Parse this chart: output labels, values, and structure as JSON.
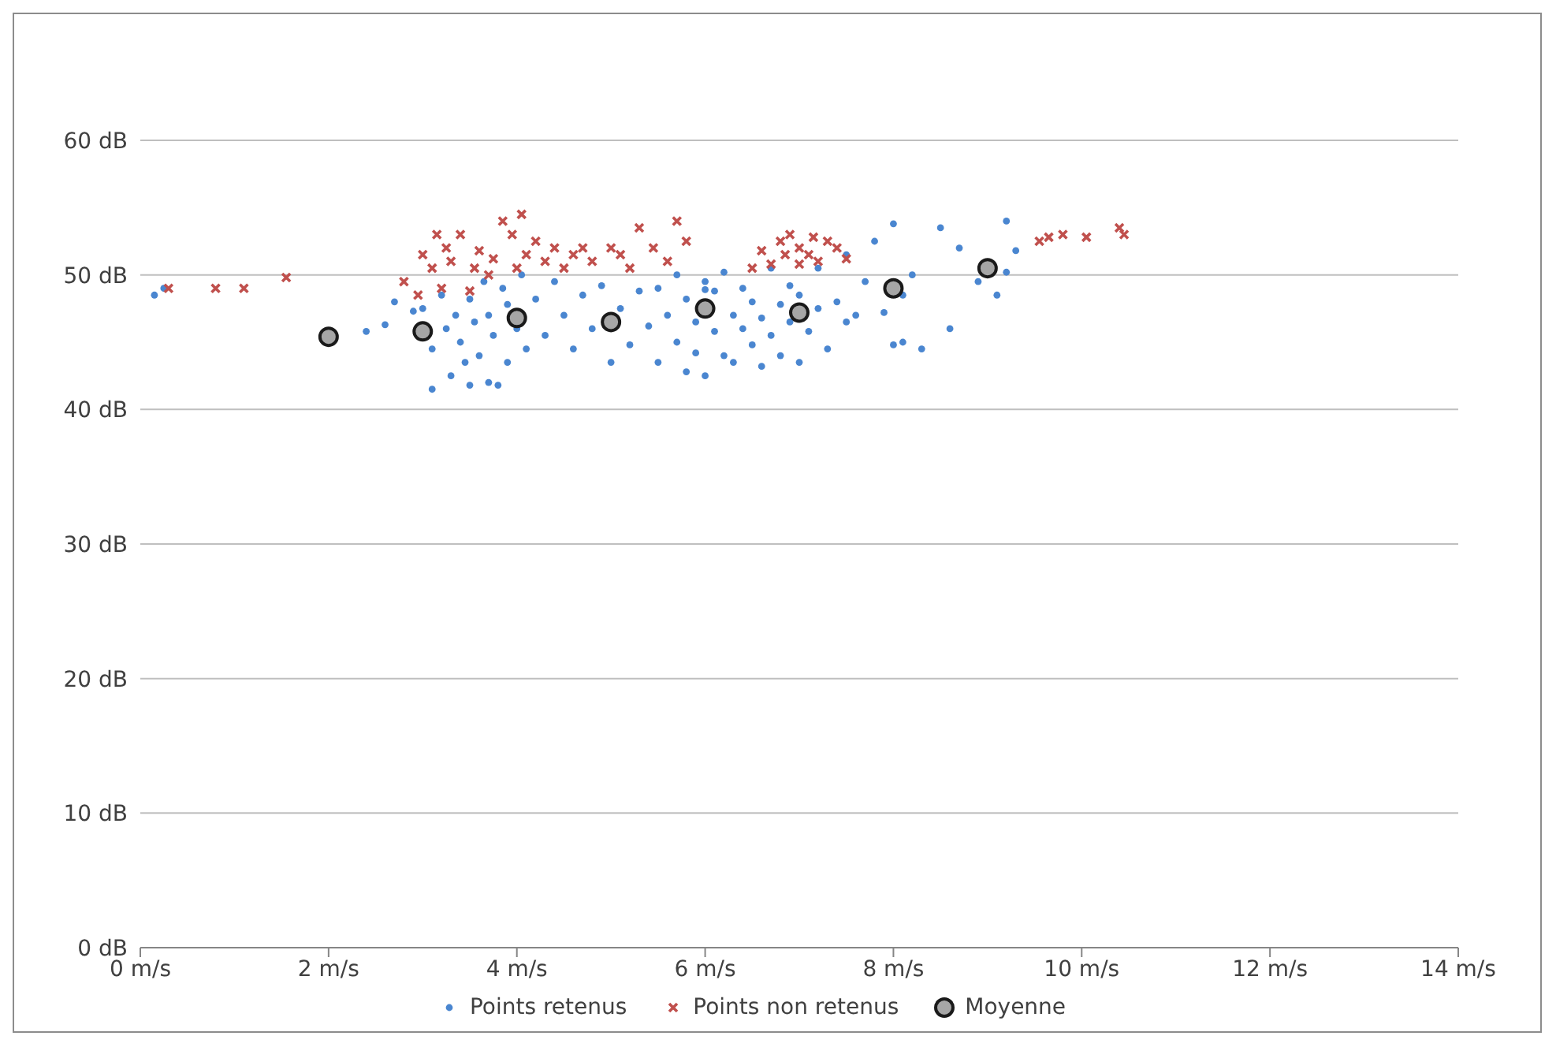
{
  "chart_data": {
    "type": "scatter",
    "xlim": [
      0,
      14
    ],
    "ylim": [
      0,
      60
    ],
    "xticks": [
      {
        "value": 0,
        "label": "0 m/s"
      },
      {
        "value": 2,
        "label": "2 m/s"
      },
      {
        "value": 4,
        "label": "4 m/s"
      },
      {
        "value": 6,
        "label": "6 m/s"
      },
      {
        "value": 8,
        "label": "8 m/s"
      },
      {
        "value": 10,
        "label": "10 m/s"
      },
      {
        "value": 12,
        "label": "12 m/s"
      },
      {
        "value": 14,
        "label": "14 m/s"
      }
    ],
    "yticks": [
      {
        "value": 0,
        "label": "0 dB"
      },
      {
        "value": 10,
        "label": "10 dB"
      },
      {
        "value": 20,
        "label": "20 dB"
      },
      {
        "value": 30,
        "label": "30 dB"
      },
      {
        "value": 40,
        "label": "40 dB"
      },
      {
        "value": 50,
        "label": "50 dB"
      },
      {
        "value": 60,
        "label": "60 dB"
      }
    ],
    "grid": "y",
    "legend": "bottom",
    "series": [
      {
        "name": "Points retenus",
        "color": "#4a86d0",
        "marker": "circle",
        "x": [
          0.15,
          0.25,
          2.4,
          2.6,
          2.7,
          2.9,
          3.0,
          3.1,
          3.1,
          3.2,
          3.25,
          3.3,
          3.35,
          3.4,
          3.45,
          3.5,
          3.5,
          3.55,
          3.6,
          3.65,
          3.7,
          3.7,
          3.75,
          3.8,
          3.85,
          3.9,
          3.9,
          4.0,
          4.05,
          4.1,
          4.2,
          4.3,
          4.4,
          4.5,
          4.6,
          4.7,
          4.8,
          4.9,
          5.0,
          5.1,
          5.2,
          5.3,
          5.4,
          5.5,
          5.5,
          5.6,
          5.7,
          5.7,
          5.8,
          5.8,
          5.9,
          5.9,
          6.0,
          6.0,
          6.0,
          6.1,
          6.1,
          6.2,
          6.2,
          6.3,
          6.3,
          6.4,
          6.4,
          6.5,
          6.5,
          6.6,
          6.6,
          6.7,
          6.7,
          6.8,
          6.8,
          6.9,
          6.9,
          7.0,
          7.0,
          7.1,
          7.2,
          7.2,
          7.3,
          7.4,
          7.5,
          7.5,
          7.6,
          7.7,
          7.8,
          7.9,
          8.0,
          8.0,
          8.1,
          8.1,
          8.2,
          8.3,
          8.5,
          8.6,
          8.7,
          8.9,
          9.1,
          9.2,
          9.2,
          9.3
        ],
        "values": [
          48.5,
          49,
          45.8,
          46.3,
          48,
          47.3,
          47.5,
          41.5,
          44.5,
          48.5,
          46,
          42.5,
          47,
          45,
          43.5,
          41.8,
          48.2,
          46.5,
          44,
          49.5,
          42,
          47,
          45.5,
          41.8,
          49,
          43.5,
          47.8,
          46,
          50,
          44.5,
          48.2,
          45.5,
          49.5,
          47,
          44.5,
          48.5,
          46,
          49.2,
          43.5,
          47.5,
          44.8,
          48.8,
          46.2,
          43.5,
          49,
          47,
          45,
          50,
          42.8,
          48.2,
          46.5,
          44.2,
          49.5,
          48.9,
          42.5,
          45.8,
          48.8,
          44,
          50.2,
          47,
          43.5,
          46,
          49,
          44.8,
          48,
          46.8,
          43.2,
          50.5,
          45.5,
          47.8,
          44,
          49.2,
          46.5,
          48.5,
          43.5,
          45.8,
          47.5,
          50.5,
          44.5,
          48,
          46.5,
          51.5,
          47,
          49.5,
          52.5,
          47.2,
          44.8,
          53.8,
          48.5,
          45,
          50,
          44.5,
          53.5,
          46,
          52,
          49.5,
          48.5,
          54,
          50.2,
          51.8
        ]
      },
      {
        "name": "Points non retenus",
        "color": "#c0504d",
        "marker": "cross",
        "x": [
          0.3,
          0.8,
          1.1,
          1.55,
          2.8,
          2.95,
          3.0,
          3.1,
          3.15,
          3.2,
          3.25,
          3.3,
          3.4,
          3.5,
          3.55,
          3.6,
          3.7,
          3.75,
          3.85,
          3.95,
          4.0,
          4.05,
          4.1,
          4.2,
          4.3,
          4.4,
          4.5,
          4.6,
          4.7,
          4.8,
          5.0,
          5.1,
          5.2,
          5.3,
          5.45,
          5.6,
          5.7,
          5.8,
          6.5,
          6.6,
          6.7,
          6.8,
          6.85,
          6.9,
          7.0,
          7.0,
          7.1,
          7.15,
          7.2,
          7.3,
          7.4,
          7.5,
          9.55,
          9.65,
          9.8,
          10.05,
          10.4,
          10.45
        ],
        "values": [
          49,
          49,
          49,
          49.8,
          49.5,
          48.5,
          51.5,
          50.5,
          53,
          49,
          52,
          51,
          53,
          48.8,
          50.5,
          51.8,
          50,
          51.2,
          54,
          53,
          50.5,
          54.5,
          51.5,
          52.5,
          51,
          52,
          50.5,
          51.5,
          52,
          51,
          52,
          51.5,
          50.5,
          53.5,
          52,
          51,
          54,
          52.5,
          50.5,
          51.8,
          50.8,
          52.5,
          51.5,
          53,
          50.8,
          52,
          51.5,
          52.8,
          51,
          52.5,
          52,
          51.2,
          52.5,
          52.8,
          53,
          52.8,
          53.5,
          53
        ]
      },
      {
        "name": "Moyenne",
        "color": "#a6a6a6",
        "marker": "circle",
        "x": [
          2,
          3,
          4,
          5,
          6,
          7,
          8,
          9
        ],
        "values": [
          45.4,
          45.8,
          46.8,
          46.5,
          47.5,
          47.2,
          49,
          50.5
        ]
      }
    ]
  }
}
